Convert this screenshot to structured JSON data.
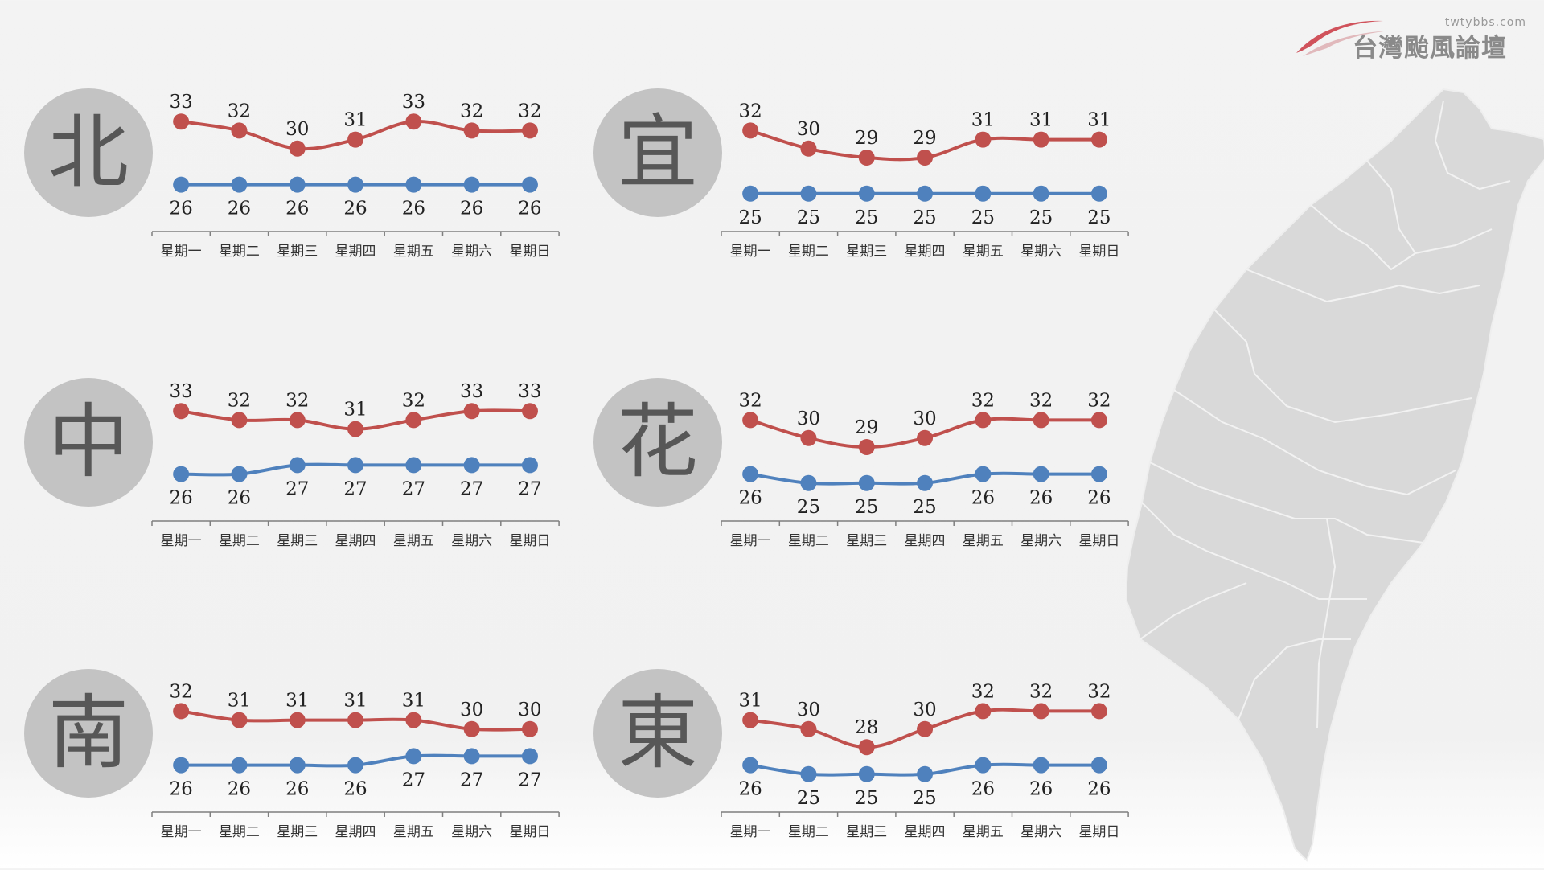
{
  "logo": {
    "text": "台灣颱風論壇",
    "url": "twtybbs.com"
  },
  "colors": {
    "high": "#c0504d",
    "low": "#4f81bd",
    "circle": "#c3c3c3",
    "map": "#d9d9d9"
  },
  "icons": {
    "logo": "swoosh-logo-icon",
    "map": "taiwan-map-icon"
  },
  "chart_data": [
    {
      "type": "line",
      "region": "北",
      "categories": [
        "星期一",
        "星期二",
        "星期三",
        "星期四",
        "星期五",
        "星期六",
        "星期日"
      ],
      "series": [
        {
          "values": [
            33,
            32,
            30,
            31,
            33,
            32,
            32
          ]
        },
        {
          "values": [
            26,
            26,
            26,
            26,
            26,
            26,
            26
          ]
        }
      ]
    },
    {
      "type": "line",
      "region": "宜",
      "categories": [
        "星期一",
        "星期二",
        "星期三",
        "星期四",
        "星期五",
        "星期六",
        "星期日"
      ],
      "series": [
        {
          "values": [
            32,
            30,
            29,
            29,
            31,
            31,
            31
          ]
        },
        {
          "values": [
            25,
            25,
            25,
            25,
            25,
            25,
            25
          ]
        }
      ]
    },
    {
      "type": "line",
      "region": "中",
      "categories": [
        "星期一",
        "星期二",
        "星期三",
        "星期四",
        "星期五",
        "星期六",
        "星期日"
      ],
      "series": [
        {
          "values": [
            33,
            32,
            32,
            31,
            32,
            33,
            33
          ]
        },
        {
          "values": [
            26,
            26,
            27,
            27,
            27,
            27,
            27
          ]
        }
      ]
    },
    {
      "type": "line",
      "region": "花",
      "categories": [
        "星期一",
        "星期二",
        "星期三",
        "星期四",
        "星期五",
        "星期六",
        "星期日"
      ],
      "series": [
        {
          "values": [
            32,
            30,
            29,
            30,
            32,
            32,
            32
          ]
        },
        {
          "values": [
            26,
            25,
            25,
            25,
            26,
            26,
            26
          ]
        }
      ]
    },
    {
      "type": "line",
      "region": "南",
      "categories": [
        "星期一",
        "星期二",
        "星期三",
        "星期四",
        "星期五",
        "星期六",
        "星期日"
      ],
      "series": [
        {
          "values": [
            32,
            31,
            31,
            31,
            31,
            30,
            30
          ]
        },
        {
          "values": [
            26,
            26,
            26,
            26,
            27,
            27,
            27
          ]
        }
      ]
    },
    {
      "type": "line",
      "region": "東",
      "categories": [
        "星期一",
        "星期二",
        "星期三",
        "星期四",
        "星期五",
        "星期六",
        "星期日"
      ],
      "series": [
        {
          "values": [
            31,
            30,
            28,
            30,
            32,
            32,
            32
          ]
        },
        {
          "values": [
            26,
            25,
            25,
            25,
            26,
            26,
            26
          ]
        }
      ]
    }
  ]
}
